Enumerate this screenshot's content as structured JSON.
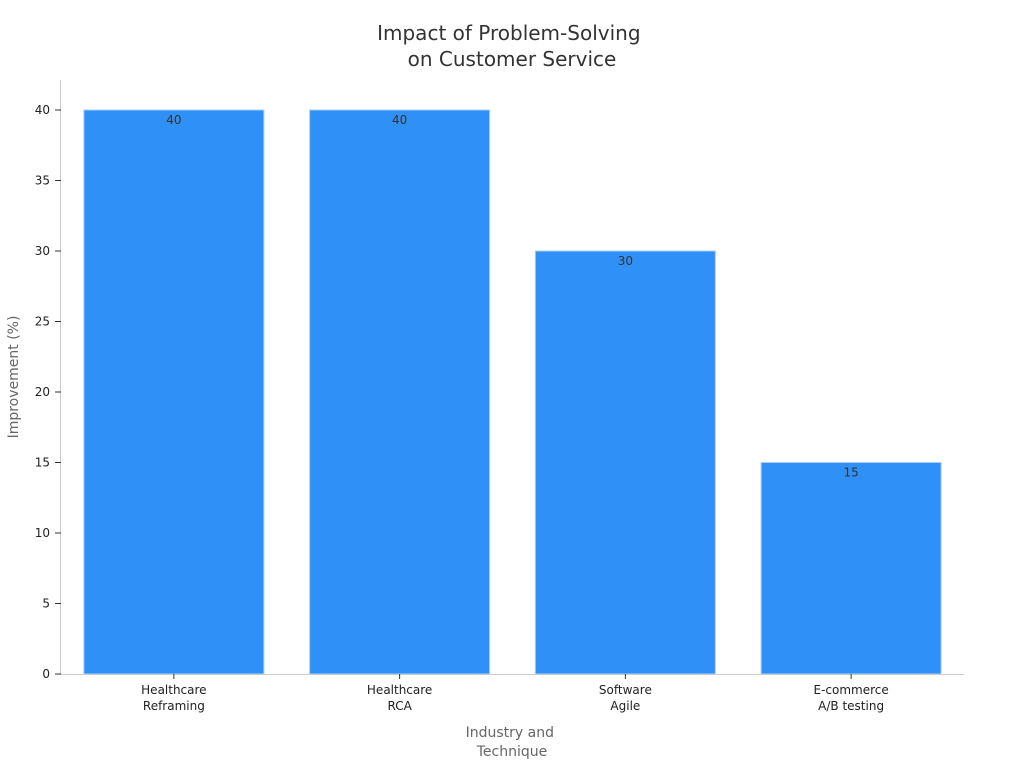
{
  "chart_data": {
    "type": "bar",
    "title_lines": [
      "Impact of Problem-Solving",
      "on Customer Service"
    ],
    "xlabel_lines": [
      "Industry and",
      "Technique"
    ],
    "ylabel": "Improvement (%)",
    "categories": [
      [
        "Healthcare",
        "Reframing"
      ],
      [
        "Healthcare",
        "RCA"
      ],
      [
        "Software",
        "Agile"
      ],
      [
        "E-commerce",
        "A/B testing"
      ]
    ],
    "values": [
      40,
      40,
      30,
      15
    ],
    "ylim": [
      0,
      42
    ],
    "yticks": [
      0,
      5,
      10,
      15,
      20,
      25,
      30,
      35,
      40
    ],
    "grid": false,
    "legend": "none",
    "bar_color": "#2f91f8",
    "bar_edge_color": "#a9cdf6"
  }
}
